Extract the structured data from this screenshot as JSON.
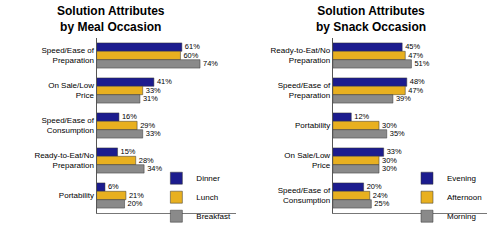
{
  "chart_data": [
    {
      "type": "bar",
      "title": "Solution Attributes",
      "subtitle": "by Meal Occasion",
      "orientation": "horizontal",
      "data_labels": true,
      "tick_labels": "y",
      "grid": false,
      "legend": "lower right",
      "xlim": [
        0,
        100
      ],
      "categories": [
        "Speed/Ease of Preparation",
        "On Sale/Low Price",
        "Speed/Ease of Consumption",
        "Ready-to-Eat/No Preparation",
        "Portability"
      ],
      "series": [
        {
          "name": "Dinner",
          "color": "#1c1c8e",
          "values": [
            61,
            41,
            16,
            15,
            6
          ],
          "value_labels": [
            "61%",
            "41%",
            "16%",
            "15%",
            "6%"
          ]
        },
        {
          "name": "Lunch",
          "color": "#e8b020",
          "values": [
            60,
            33,
            29,
            28,
            21
          ],
          "value_labels": [
            "60%",
            "33%",
            "29%",
            "28%",
            "21%"
          ]
        },
        {
          "name": "Breakfast",
          "color": "#8a8a8a",
          "values": [
            74,
            31,
            33,
            34,
            20
          ],
          "value_labels": [
            "74%",
            "31%",
            "33%",
            "34%",
            "20%"
          ]
        }
      ]
    },
    {
      "type": "bar",
      "title": "Solution Attributes",
      "subtitle": "by Snack Occasion",
      "orientation": "horizontal",
      "data_labels": true,
      "tick_labels": "y",
      "grid": false,
      "legend": "lower right",
      "xlim": [
        0,
        100
      ],
      "categories": [
        "Ready-to-Eat/No Preparation",
        "Speed/Ease of Preparation",
        "Portability",
        "On Sale/Low Price",
        "Speed/Ease of Consumption"
      ],
      "series": [
        {
          "name": "Evening",
          "color": "#1c1c8e",
          "values": [
            45,
            48,
            12,
            33,
            20
          ],
          "value_labels": [
            "45%",
            "48%",
            "12%",
            "33%",
            "20%"
          ]
        },
        {
          "name": "Afternoon",
          "color": "#e8b020",
          "values": [
            47,
            47,
            30,
            30,
            24
          ],
          "value_labels": [
            "47%",
            "47%",
            "30%",
            "30%",
            "24%"
          ]
        },
        {
          "name": "Morning",
          "color": "#8a8a8a",
          "values": [
            51,
            39,
            35,
            30,
            25
          ],
          "value_labels": [
            "51%",
            "39%",
            "35%",
            "30%",
            "25%"
          ]
        }
      ]
    }
  ]
}
